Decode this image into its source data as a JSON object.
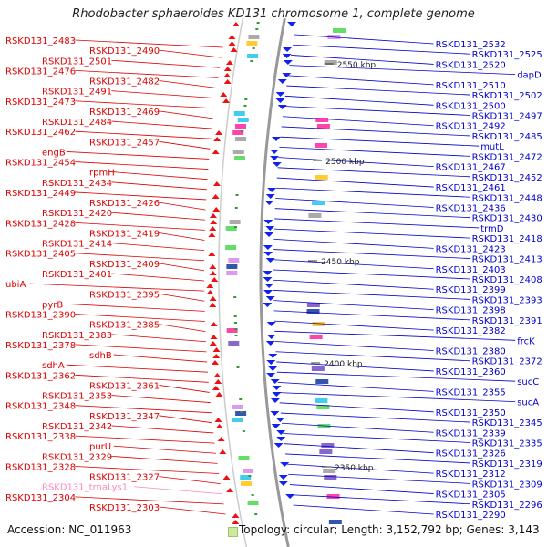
{
  "title": "Rhodobacter sphaeroides KD131 chromosome 1, complete genome",
  "accession_text": "Accession: NC_011963",
  "topology_text": "Topology: circular; Length: 3,152,792 bp; Genes: 3,143",
  "colors": {
    "left_label": "#dd0000",
    "right_label": "#0000cc",
    "rna_label": "#ff88bb",
    "left_arrow": "#ee1111",
    "right_arrow": "#1122ee",
    "backbone": "#999999",
    "tick": "#339933"
  },
  "scale_marks": [
    "2550 kbp",
    "2500 kbp",
    "2450 kbp",
    "2400 kbp",
    "2350 kbp"
  ],
  "left_labels": [
    "RSKD131_2483",
    "RSKD131_2490",
    "RSKD131_2501",
    "RSKD131_2476",
    "RSKD131_2482",
    "RSKD131_2491",
    "RSKD131_2473",
    "RSKD131_2469",
    "RSKD131_2484",
    "RSKD131_2462",
    "RSKD131_2457",
    "engB",
    "RSKD131_2454",
    "rpmH",
    "RSKD131_2434",
    "RSKD131_2449",
    "RSKD131_2426",
    "RSKD131_2420",
    "RSKD131_2428",
    "RSKD131_2419",
    "RSKD131_2414",
    "RSKD131_2405",
    "RSKD131_2409",
    "RSKD131_2401",
    "ubiA",
    "RSKD131_2395",
    "pyrB",
    "RSKD131_2390",
    "RSKD131_2385",
    "RSKD131_2383",
    "RSKD131_2378",
    "sdhB",
    "sdhA",
    "RSKD131_2362",
    "RSKD131_2361",
    "RSKD131_2353",
    "RSKD131_2348",
    "RSKD131_2347",
    "RSKD131_2342",
    "RSKD131_2338",
    "purU",
    "RSKD131_2329",
    "RSKD131_2328",
    "RSKD131_2327",
    "RSKD131_trnaLys1",
    "RSKD131_2304",
    "RSKD131_2303"
  ],
  "right_labels": [
    "RSKD131_2532",
    "RSKD131_2525",
    "RSKD131_2520",
    "dapD",
    "RSKD131_2510",
    "RSKD131_2502",
    "RSKD131_2500",
    "RSKD131_2497",
    "RSKD131_2492",
    "RSKD131_2485",
    "mutL",
    "RSKD131_2472",
    "RSKD131_2467",
    "RSKD131_2452",
    "RSKD131_2461",
    "RSKD131_2448",
    "RSKD131_2436",
    "RSKD131_2430",
    "trmD",
    "RSKD131_2418",
    "RSKD131_2423",
    "RSKD131_2413",
    "RSKD131_2403",
    "RSKD131_2408",
    "RSKD131_2399",
    "RSKD131_2393",
    "RSKD131_2398",
    "RSKD131_2391",
    "RSKD131_2382",
    "frcK",
    "RSKD131_2380",
    "RSKD131_2372",
    "RSKD131_2360",
    "sucC",
    "RSKD131_2355",
    "sucA",
    "RSKD131_2350",
    "RSKD131_2345",
    "RSKD131_2339",
    "RSKD131_2335",
    "RSKD131_2326",
    "RSKD131_2319",
    "RSKD131_2312",
    "RSKD131_2309",
    "RSKD131_2305",
    "RSKD131_2296",
    "RSKD131_2290"
  ]
}
